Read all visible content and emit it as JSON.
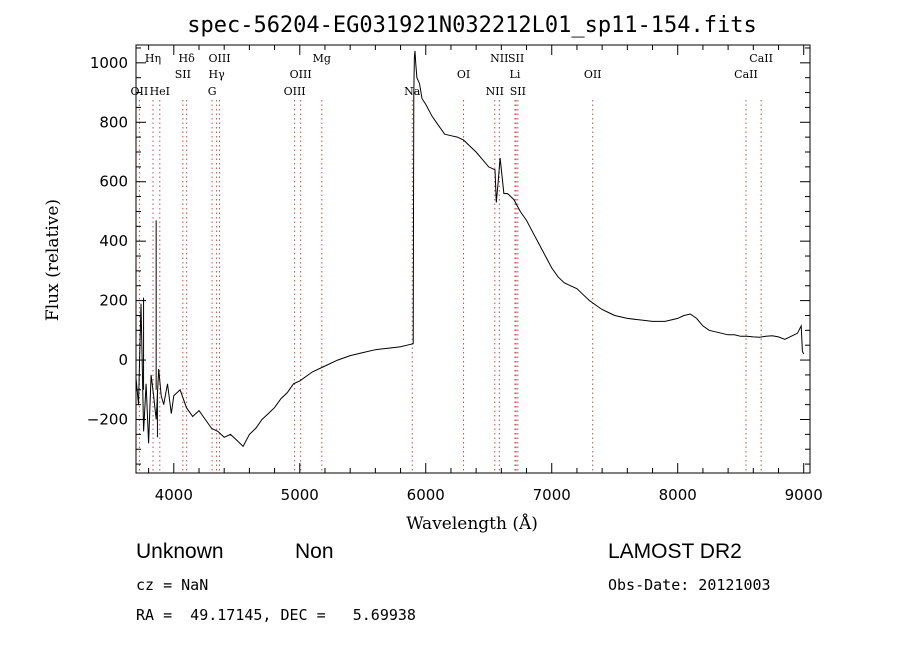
{
  "chart_data": {
    "type": "line",
    "title": "spec-56204-EG031921N032212L01_sp11-154.fits",
    "xlabel": "Wavelength (Å)",
    "ylabel": "Flux (relative)",
    "xlim": [
      3700,
      9050
    ],
    "ylim": [
      -380,
      1060
    ],
    "x_ticks": [
      4000,
      5000,
      6000,
      7000,
      8000,
      9000
    ],
    "y_ticks": [
      -200,
      0,
      200,
      400,
      600,
      800,
      1000
    ],
    "grid": false,
    "line_color": "#000000",
    "marker_color": "#c0504d",
    "series": [
      {
        "x": [
          3700,
          3720,
          3740,
          3760,
          3780,
          3800,
          3820,
          3840,
          3860,
          3880,
          3900,
          3920,
          3950,
          3980,
          4000,
          4050,
          4100,
          4150,
          4200,
          4250,
          4300,
          4350,
          4400,
          4450,
          4500,
          4550,
          4600,
          4650,
          4700,
          4750,
          4800,
          4850,
          4900,
          4950,
          5000,
          5100,
          5200,
          5300,
          5400,
          5500,
          5600,
          5700,
          5800,
          5850,
          5900,
          5905,
          5910,
          5915,
          5920,
          5930,
          5950,
          5970,
          6000,
          6050,
          6100,
          6150,
          6200,
          6250,
          6300,
          6350,
          6400,
          6450,
          6500,
          6550,
          6560,
          6575,
          6590,
          6620,
          6650,
          6700,
          6750,
          6800,
          6850,
          6900,
          6950,
          7000,
          7050,
          7100,
          7150,
          7200,
          7250,
          7300,
          7350,
          7400,
          7450,
          7500,
          7600,
          7700,
          7800,
          7900,
          8000,
          8050,
          8100,
          8150,
          8200,
          8250,
          8300,
          8350,
          8400,
          8450,
          8500,
          8550,
          8600,
          8650,
          8700,
          8750,
          8800,
          8850,
          8900,
          8950,
          8980,
          8990,
          9000
        ],
        "y": [
          -60,
          -150,
          190,
          -240,
          -80,
          -280,
          -50,
          -120,
          -200,
          -30,
          -120,
          -150,
          -80,
          -180,
          -120,
          -100,
          -160,
          -190,
          -170,
          -200,
          -230,
          -240,
          -260,
          -250,
          -270,
          -290,
          -250,
          -230,
          -200,
          -180,
          -160,
          -130,
          -110,
          -80,
          -70,
          -40,
          -20,
          0,
          15,
          25,
          35,
          40,
          45,
          50,
          55,
          900,
          1020,
          1040,
          1000,
          950,
          930,
          880,
          860,
          820,
          790,
          760,
          755,
          750,
          740,
          720,
          700,
          675,
          650,
          640,
          530,
          600,
          680,
          560,
          560,
          540,
          500,
          470,
          430,
          390,
          350,
          310,
          280,
          260,
          250,
          240,
          220,
          200,
          185,
          170,
          160,
          150,
          140,
          135,
          130,
          130,
          140,
          150,
          155,
          140,
          115,
          100,
          95,
          90,
          85,
          85,
          80,
          80,
          78,
          77,
          80,
          82,
          78,
          70,
          80,
          90,
          115,
          30,
          20
        ]
      }
    ],
    "spikes": [
      {
        "x": 3760,
        "y": 210
      },
      {
        "x": 3860,
        "y": 470
      },
      {
        "x": 3870,
        "y": -260
      }
    ],
    "line_markers": [
      {
        "label": "Hη",
        "x": 3835,
        "row": 0
      },
      {
        "label": "OII",
        "x": 3727,
        "row": 2
      },
      {
        "label": "HeI",
        "x": 3889,
        "row": 2
      },
      {
        "label": "Hδ",
        "x": 4102,
        "row": 0
      },
      {
        "label": "SII",
        "x": 4072,
        "row": 1
      },
      {
        "label": "OIII",
        "x": 4363,
        "row": 0
      },
      {
        "label": "Hγ",
        "x": 4340,
        "row": 1
      },
      {
        "label": "G",
        "x": 4304,
        "row": 2
      },
      {
        "label": "OIII",
        "x": 5007,
        "row": 1
      },
      {
        "label": "OIII",
        "x": 4959,
        "row": 2
      },
      {
        "label": "Mg",
        "x": 5175,
        "row": 0
      },
      {
        "label": "Na",
        "x": 5893,
        "row": 2
      },
      {
        "label": "OI",
        "x": 6300,
        "row": 1
      },
      {
        "label": "NII",
        "x": 6584,
        "row": 0
      },
      {
        "label": "SII",
        "x": 6717,
        "row": 0
      },
      {
        "label": "Li",
        "x": 6708,
        "row": 1
      },
      {
        "label": "NII",
        "x": 6548,
        "row": 2
      },
      {
        "label": "SII",
        "x": 6731,
        "row": 2
      },
      {
        "label": "OII",
        "x": 7325,
        "row": 1
      },
      {
        "label": "CaII",
        "x": 8662,
        "row": 0
      },
      {
        "label": "CaII",
        "x": 8542,
        "row": 1
      }
    ]
  },
  "info": {
    "classification": "Unknown",
    "subclass": "Non",
    "survey": "LAMOST DR2",
    "cz": "cz = NaN",
    "obs_date": "Obs-Date: 20121003",
    "coords": "RA =  49.17145, DEC =   5.69938"
  }
}
